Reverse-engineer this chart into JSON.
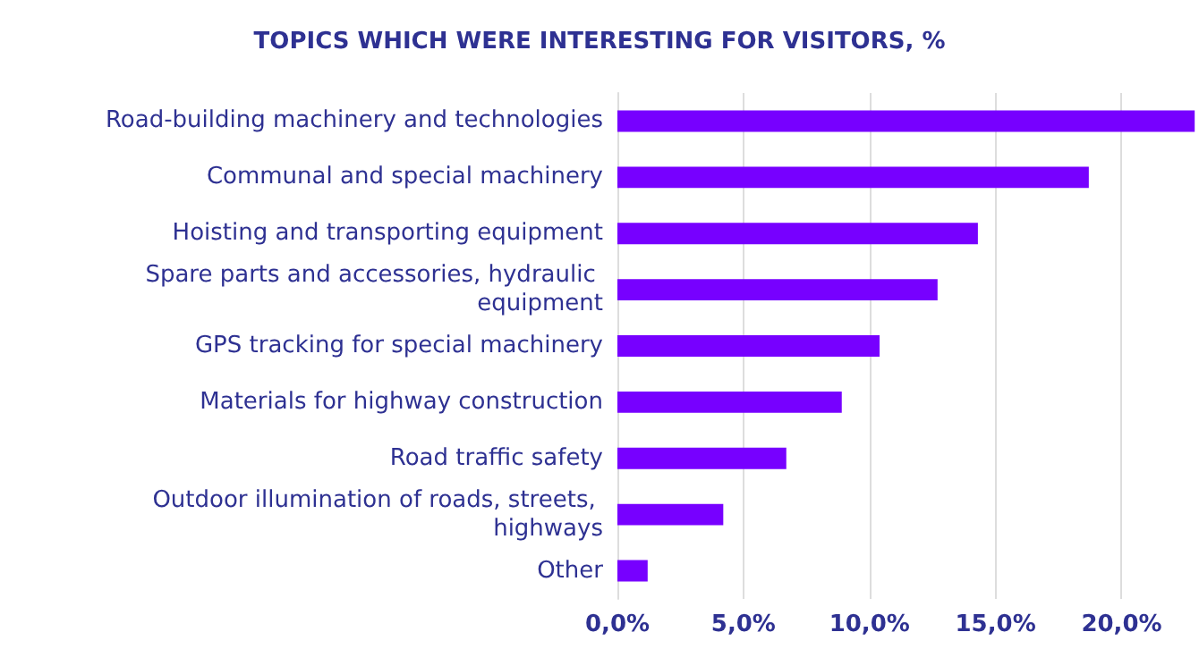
{
  "chart_data": {
    "type": "bar",
    "orientation": "horizontal",
    "title": "TOPICS WHICH WERE INTERESTING FOR VISITORS, %",
    "categories": [
      "Road-building machinery and technologies",
      "Communal and special machinery",
      "Hoisting and transporting equipment",
      "Spare parts and accessories, hydraulic equipment",
      "GPS tracking for special machinery",
      "Materials for highway construction",
      "Road traffic safety",
      "Outdoor illumination of roads, streets, highways",
      "Other"
    ],
    "values": [
      22.9,
      18.7,
      14.3,
      12.7,
      10.4,
      8.9,
      6.7,
      4.2,
      1.2
    ],
    "color": "#7700ff",
    "xlim": [
      0,
      23
    ],
    "xticks": [
      {
        "value": 0,
        "label": "0,0%"
      },
      {
        "value": 5,
        "label": "5,0%"
      },
      {
        "value": 10,
        "label": "10,0%"
      },
      {
        "value": 15,
        "label": "15,0%"
      },
      {
        "value": 20,
        "label": "20,0%"
      }
    ],
    "grid": "x"
  }
}
